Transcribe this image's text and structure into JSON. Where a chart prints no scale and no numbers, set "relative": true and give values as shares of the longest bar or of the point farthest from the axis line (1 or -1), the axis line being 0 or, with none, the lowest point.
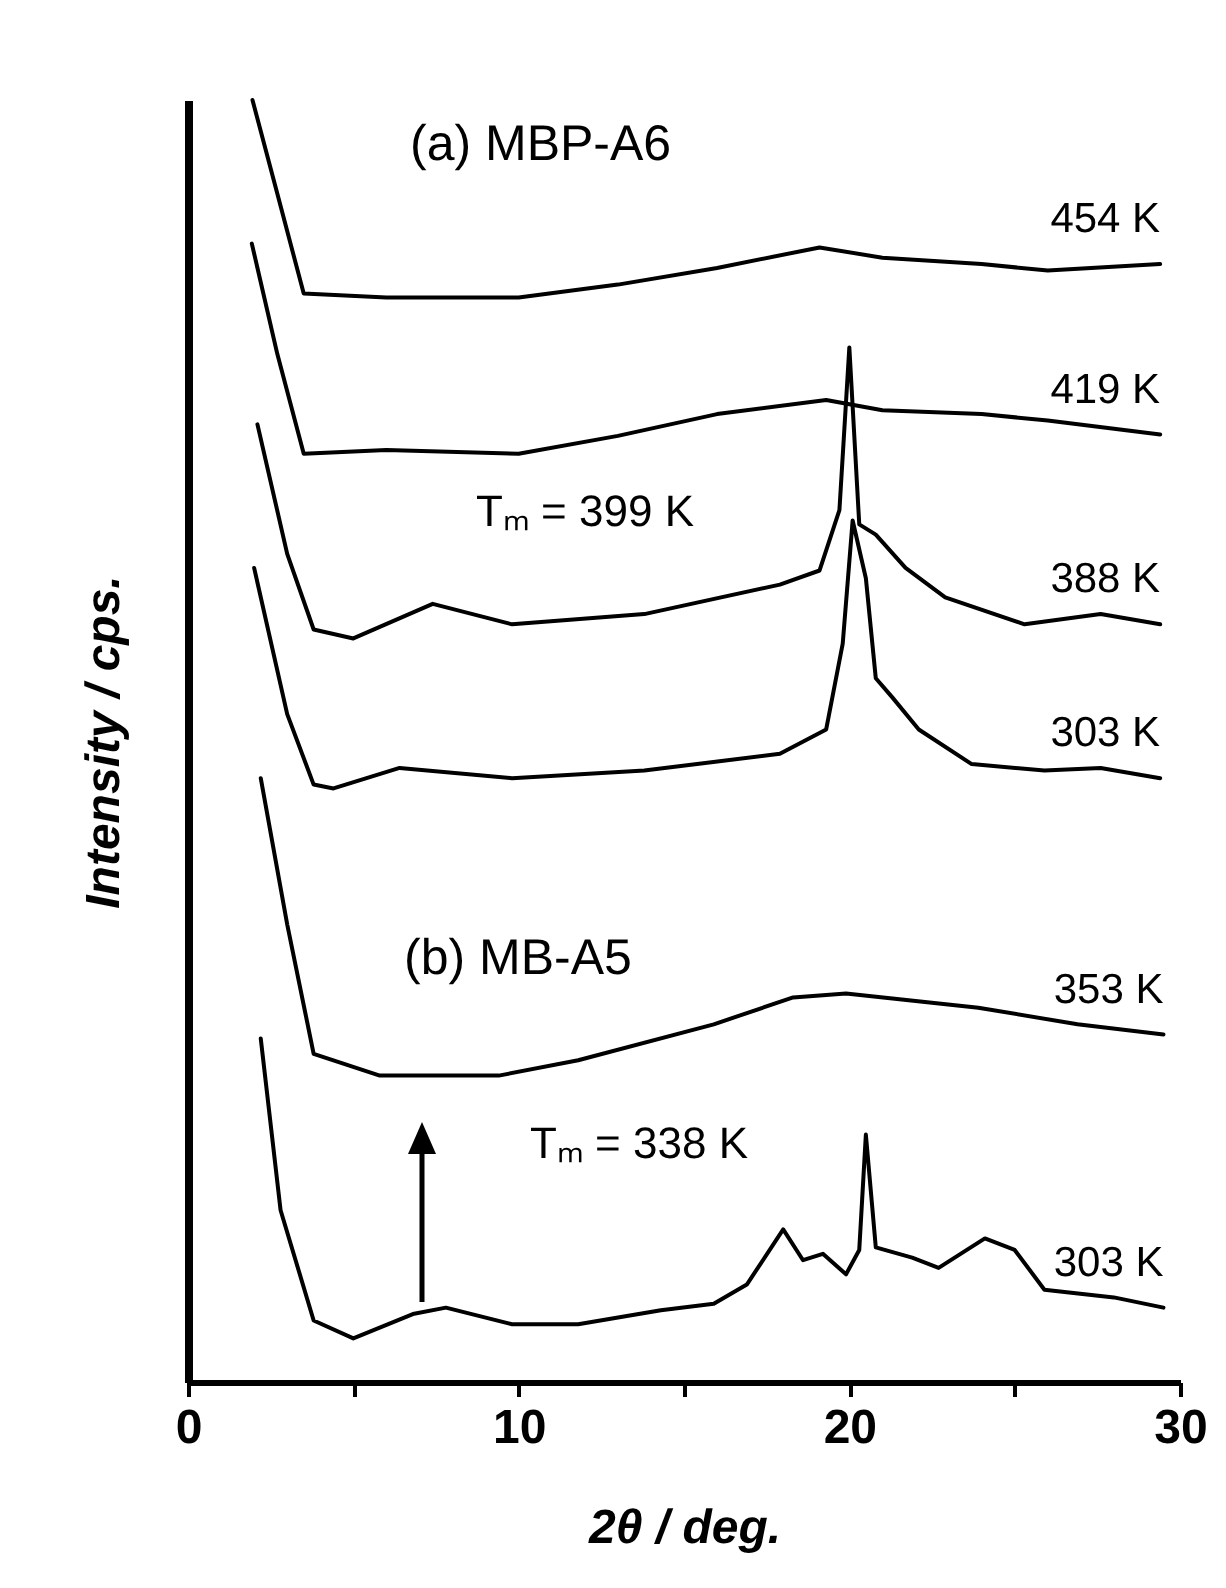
{
  "chart_data": {
    "type": "line",
    "relative": true,
    "xlabel": "2θ / deg.",
    "ylabel": "Intensity / cps.",
    "xlim": [
      0,
      30
    ],
    "xticks": [
      0,
      {
        "value": 5,
        "label": null
      },
      10,
      {
        "value": 15,
        "label": null
      },
      20,
      {
        "value": 25,
        "label": null
      },
      30
    ],
    "tick_labels": "x",
    "legend": false,
    "grid": false,
    "line_style": "solid",
    "annotations": [
      "(a) MBP-A6",
      "(b) MB-A5",
      "Tₘ = 399 K",
      "Tₘ = 338 K"
    ],
    "series": [
      {
        "name": "454 K",
        "color": "#000000",
        "x": [
          1.95,
          2.7,
          3.5,
          6,
          10,
          13,
          16,
          19.1,
          21,
          24,
          26,
          29.4
        ],
        "values": [
          1.0,
          0.927,
          0.849,
          0.846,
          0.846,
          0.856,
          0.869,
          0.885,
          0.877,
          0.872,
          0.867,
          0.872
        ]
      },
      {
        "name": "419 K",
        "color": "#000000",
        "x": [
          1.93,
          2.7,
          3.5,
          6,
          10,
          13,
          16,
          19.3,
          21,
          24,
          26,
          29.4
        ],
        "values": [
          0.888,
          0.802,
          0.724,
          0.727,
          0.724,
          0.738,
          0.755,
          0.766,
          0.758,
          0.755,
          0.75,
          0.739
        ]
      },
      {
        "name": "388 K",
        "color": "#000000",
        "x": [
          2.1,
          3,
          3.8,
          5,
          7.4,
          9.8,
          13.8,
          17.9,
          19.1,
          19.7,
          20,
          20.3,
          20.8,
          21.7,
          22.9,
          25.3,
          27.6,
          29.4
        ],
        "values": [
          0.747,
          0.646,
          0.587,
          0.58,
          0.607,
          0.591,
          0.599,
          0.622,
          0.633,
          0.68,
          0.807,
          0.669,
          0.661,
          0.635,
          0.612,
          0.591,
          0.599,
          0.591
        ]
      },
      {
        "name": "303 K",
        "color": "#000000",
        "x": [
          2,
          3,
          3.8,
          4.4,
          6.4,
          9.8,
          13.8,
          17.9,
          19.3,
          19.8,
          20.1,
          20.5,
          20.8,
          21.3,
          22.1,
          23.7,
          25.9,
          27.6,
          29.4
        ],
        "values": [
          0.635,
          0.521,
          0.466,
          0.463,
          0.479,
          0.471,
          0.477,
          0.49,
          0.509,
          0.576,
          0.672,
          0.627,
          0.549,
          0.534,
          0.509,
          0.482,
          0.477,
          0.479,
          0.471
        ]
      },
      {
        "name": "353 K",
        "color": "#000000",
        "x": [
          2.2,
          3,
          3.8,
          5.8,
          9.4,
          11.8,
          15.9,
          18.3,
          19.9,
          23.9,
          26.9,
          29.5
        ],
        "values": [
          0.471,
          0.357,
          0.256,
          0.239,
          0.239,
          0.251,
          0.279,
          0.3,
          0.303,
          0.292,
          0.279,
          0.271
        ]
      },
      {
        "name": "303 K",
        "color": "#000000",
        "x": [
          2.2,
          2.8,
          3.8,
          5,
          6.8,
          7.8,
          9.8,
          11.8,
          14.3,
          15.9,
          16.9,
          18,
          18.6,
          19.2,
          19.9,
          20.3,
          20.5,
          20.8,
          21.9,
          22.7,
          24.1,
          25,
          25.9,
          28,
          29.5
        ],
        "values": [
          0.268,
          0.134,
          0.048,
          0.034,
          0.053,
          0.058,
          0.045,
          0.045,
          0.056,
          0.061,
          0.076,
          0.119,
          0.095,
          0.1,
          0.084,
          0.103,
          0.193,
          0.105,
          0.097,
          0.089,
          0.112,
          0.103,
          0.072,
          0.066,
          0.058
        ]
      }
    ]
  }
}
